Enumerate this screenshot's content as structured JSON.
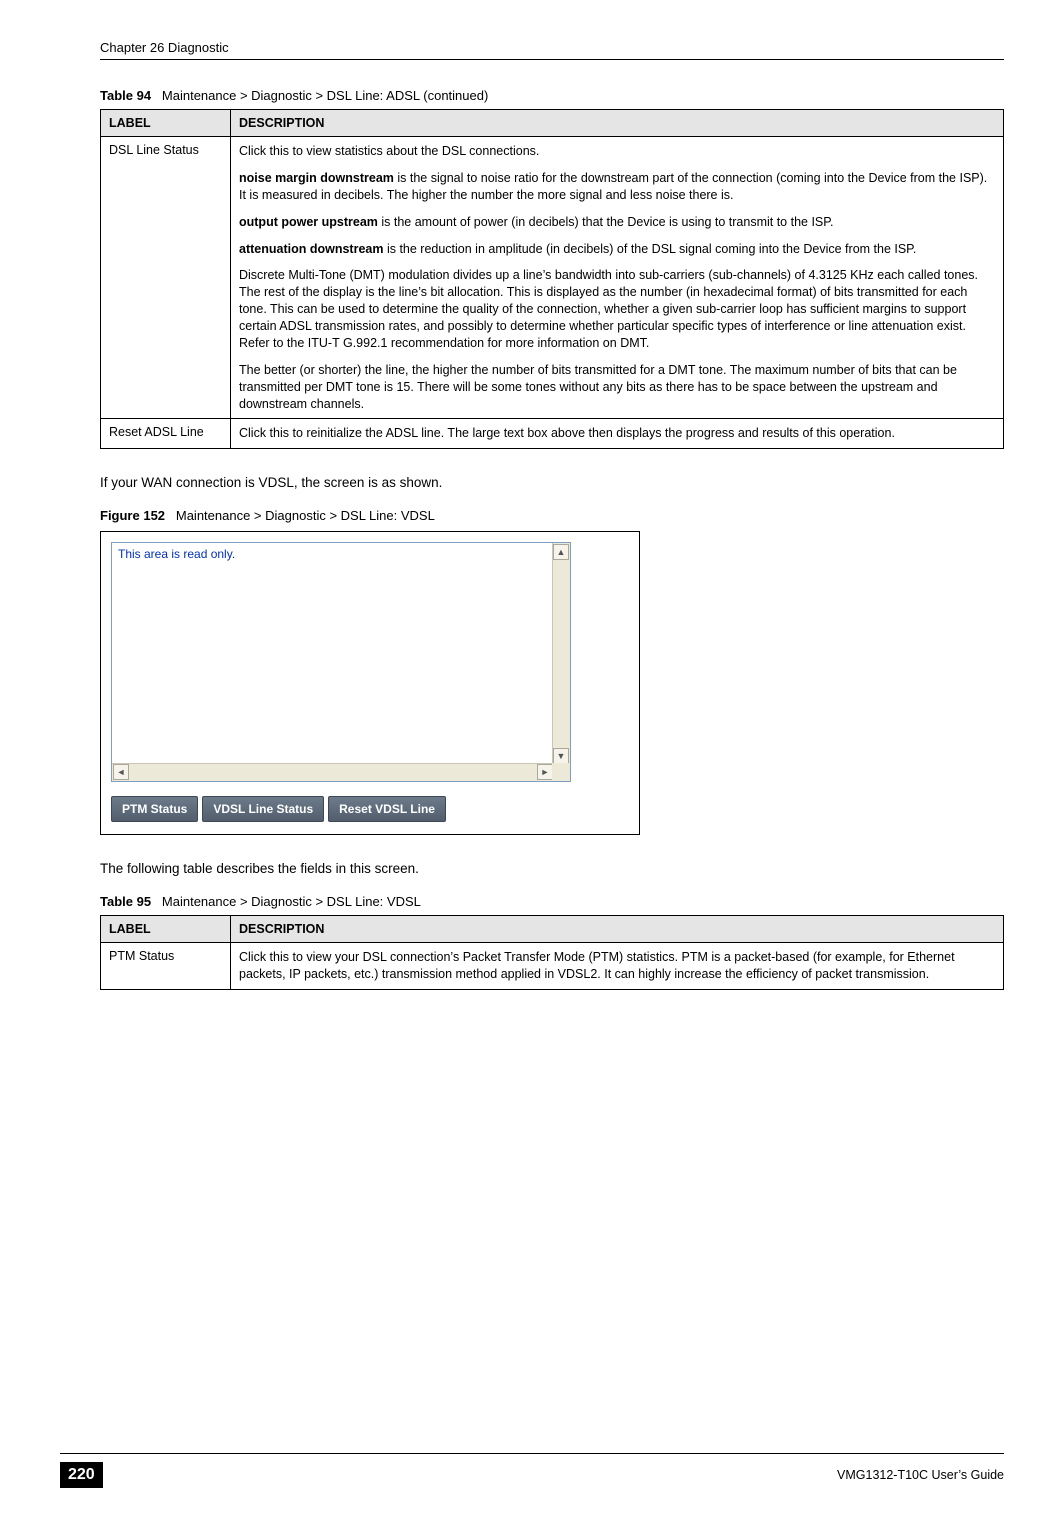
{
  "chapter_header": "Chapter 26 Diagnostic",
  "table94": {
    "caption_label": "Table 94",
    "caption_text": "Maintenance > Diagnostic > DSL Line: ADSL (continued)",
    "columns": {
      "label": "LABEL",
      "description": "DESCRIPTION"
    },
    "rows": [
      {
        "label": "DSL Line Status",
        "paras": [
          {
            "pre": "",
            "bold": "",
            "post": "Click this to view statistics about the DSL connections."
          },
          {
            "pre": "",
            "bold": "noise margin downstream",
            "post": " is the signal to noise ratio for the downstream part of the connection (coming into the Device from the ISP). It is measured in decibels. The higher the number the more signal and less noise there is."
          },
          {
            "pre": "",
            "bold": "output power upstream",
            "post": " is the amount of power (in decibels) that the Device is using to transmit to the ISP."
          },
          {
            "pre": "",
            "bold": "attenuation downstream",
            "post": " is the reduction in amplitude (in decibels) of the DSL signal coming into the Device from the ISP."
          },
          {
            "pre": "",
            "bold": "",
            "post": "Discrete Multi-Tone (DMT) modulation divides up a line’s bandwidth into sub-carriers (sub-channels) of 4.3125 KHz each called tones. The rest of the display is the line’s bit allocation. This is displayed as the number (in hexadecimal format) of bits transmitted for each tone. This can be used to determine the quality of the connection, whether a given sub-carrier loop has sufficient margins to support certain ADSL transmission rates, and possibly to determine whether particular specific types of interference or line attenuation exist. Refer to the ITU-T G.992.1 recommendation for more information on DMT."
          },
          {
            "pre": "",
            "bold": "",
            "post": "The better (or shorter) the line, the higher the number of bits transmitted for a DMT tone. The maximum number of bits that can be transmitted per DMT tone is 15. There will be some tones without any bits as there has to be space between the upstream and downstream channels."
          }
        ]
      },
      {
        "label": "Reset ADSL Line",
        "paras": [
          {
            "pre": "",
            "bold": "",
            "post": "Click this to reinitialize the ADSL line. The large text box above then displays the progress and results of this operation."
          }
        ]
      }
    ]
  },
  "paragraph_vdsl_intro": "If your WAN connection is VDSL, the screen is as shown.",
  "figure152": {
    "caption_label": "Figure 152",
    "caption_text": "Maintenance > Diagnostic > DSL Line: VDSL",
    "textarea_content": "This area is read only.",
    "buttons": {
      "ptm_status": "PTM Status",
      "vdsl_line_status": "VDSL Line Status",
      "reset_vdsl_line": "Reset VDSL Line"
    }
  },
  "paragraph_table95_intro": "The following table describes the fields in this screen.",
  "table95": {
    "caption_label": "Table 95",
    "caption_text": "Maintenance > Diagnostic > DSL Line: VDSL",
    "columns": {
      "label": "LABEL",
      "description": "DESCRIPTION"
    },
    "rows": [
      {
        "label": "PTM Status",
        "paras": [
          {
            "pre": "",
            "bold": "",
            "post": "Click this to view your DSL connection’s Packet Transfer Mode (PTM) statistics. PTM is a packet-based (for example, for Ethernet packets, IP packets, etc.) transmission method applied in VDSL2. It can highly increase the efficiency of packet transmission."
          }
        ]
      }
    ]
  },
  "footer": {
    "page_number": "220",
    "guide_name": "VMG1312-T10C User’s Guide"
  }
}
